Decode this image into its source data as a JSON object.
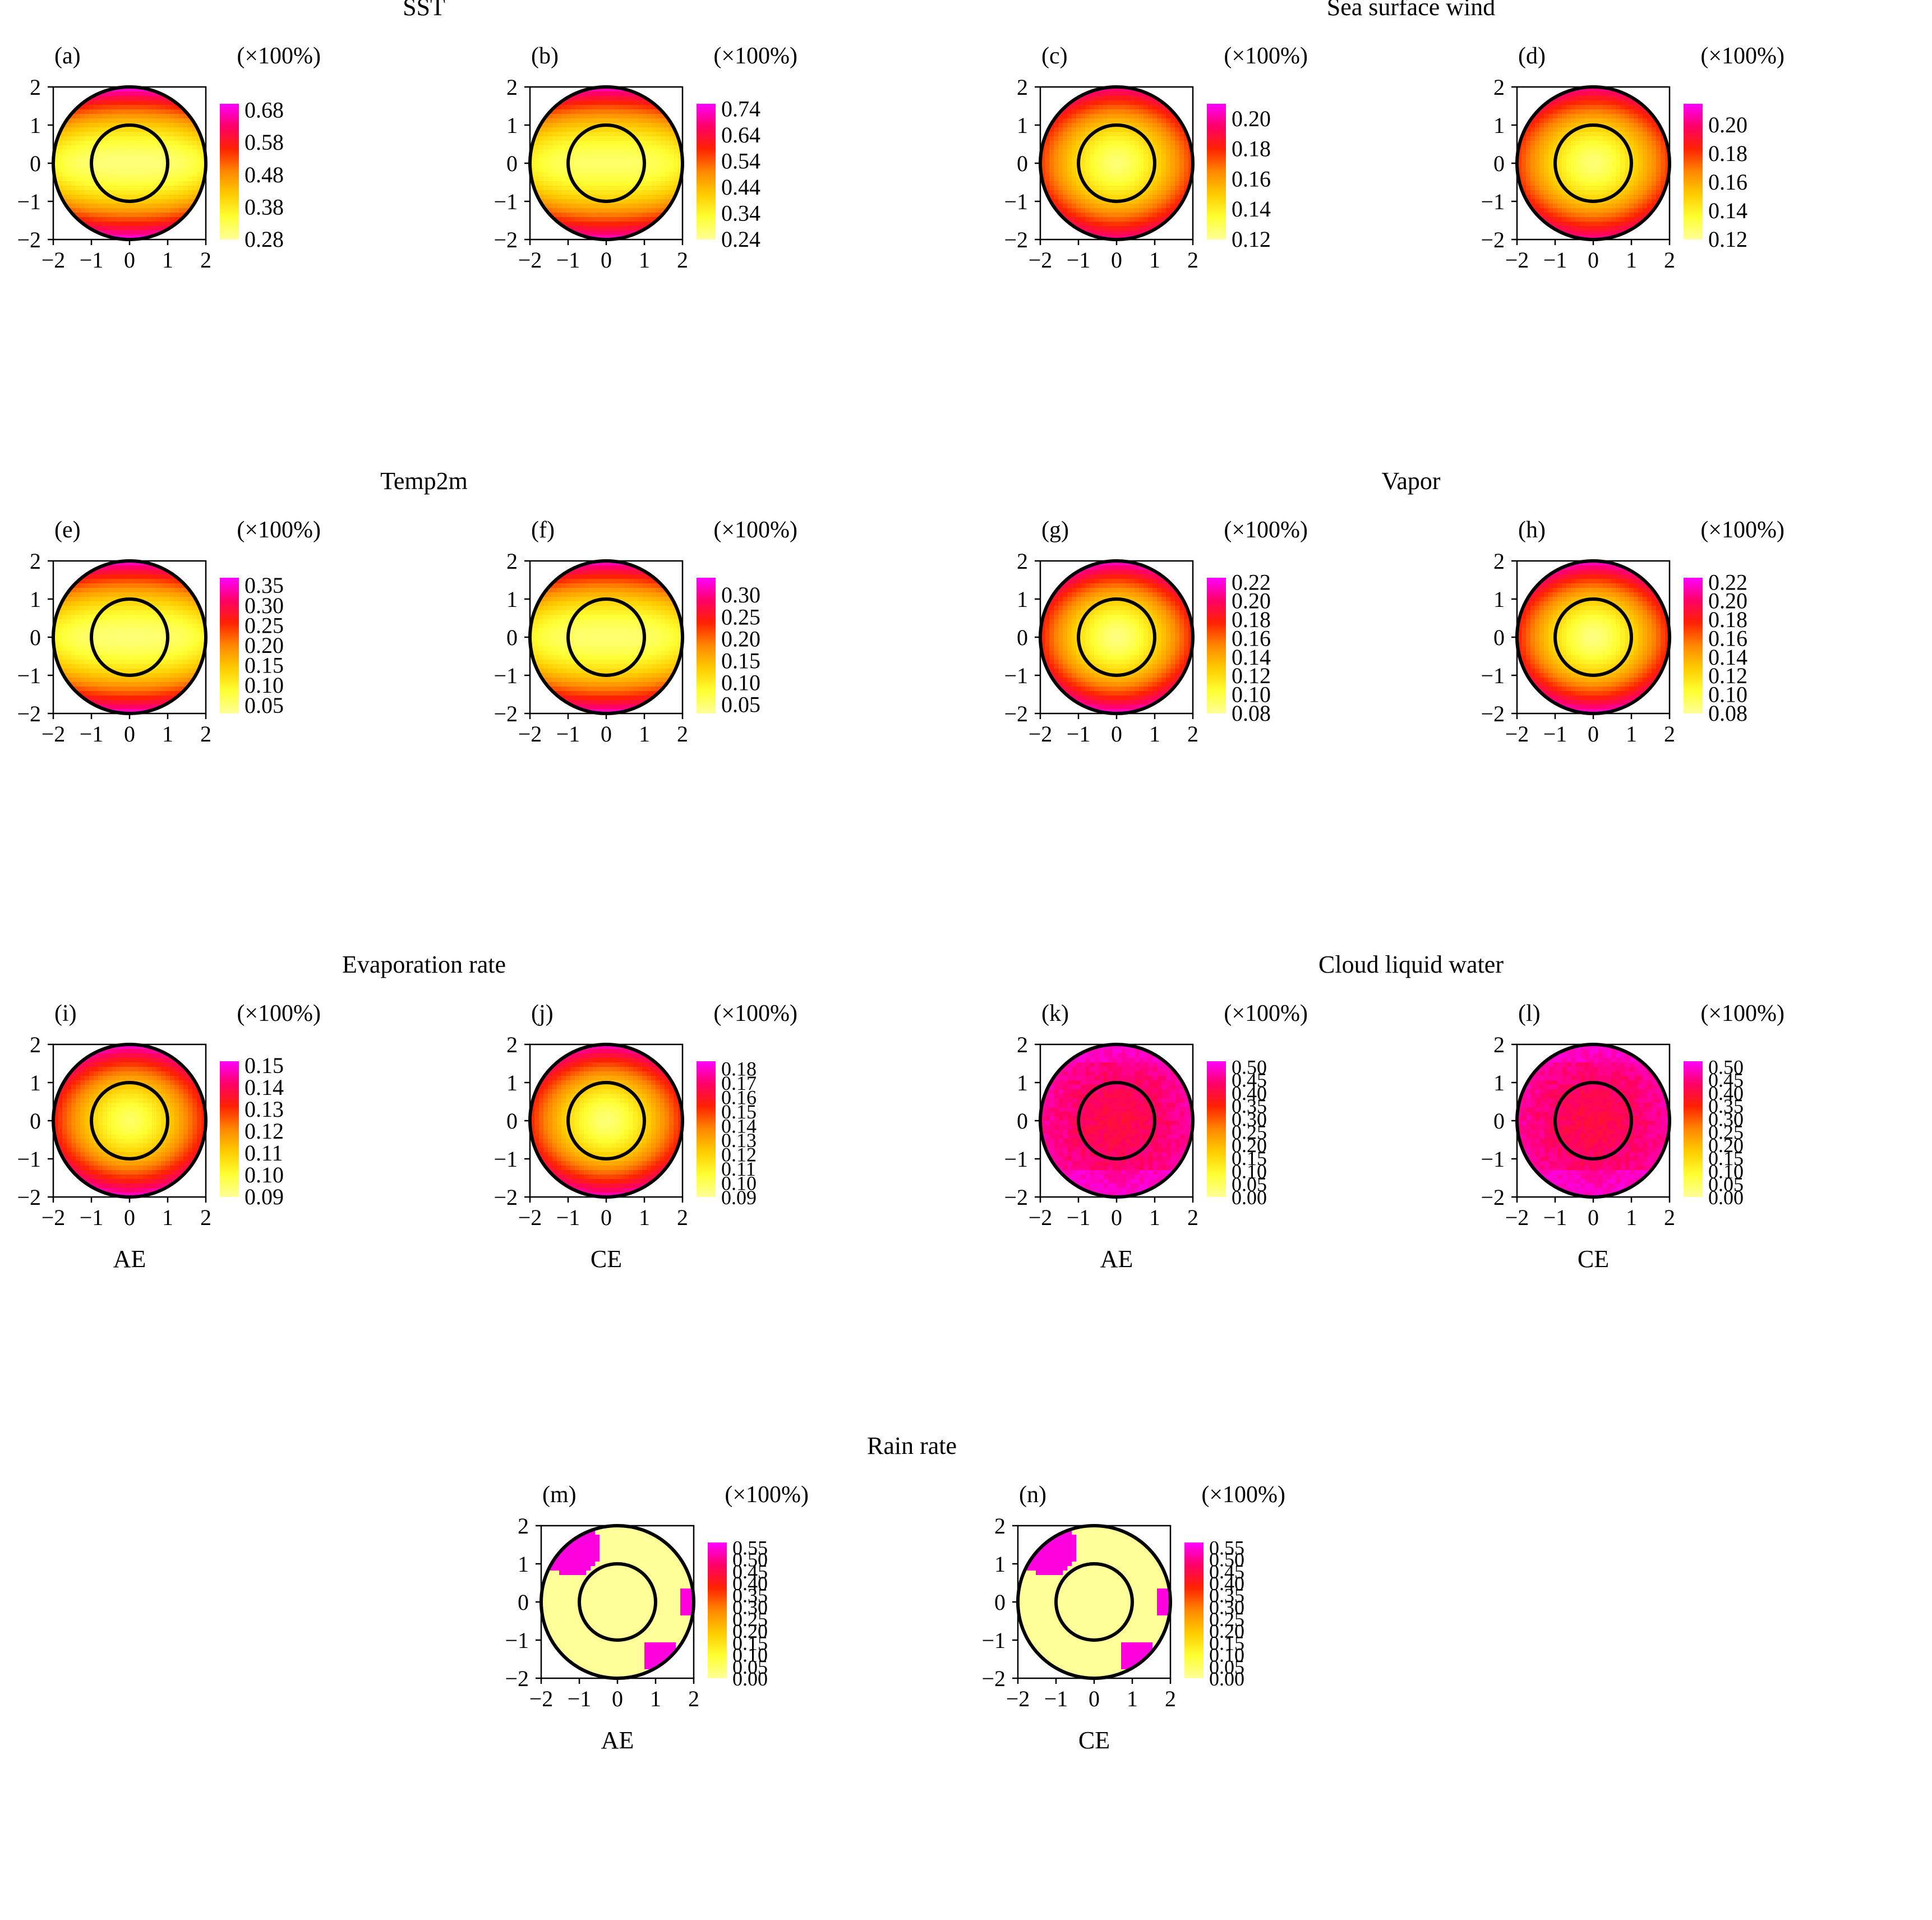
{
  "figure": {
    "unit_label": "(×100%)",
    "axis_ticks": [
      "−2",
      "−1",
      "0",
      "1",
      "2"
    ]
  },
  "colors": {
    "ramp": [
      "#ffff99",
      "#ffff33",
      "#ffcc00",
      "#ff8800",
      "#ff2200",
      "#ff0066",
      "#ff00ff"
    ],
    "outline": "#000000"
  },
  "chart_data": [
    {
      "id": "a",
      "type": "heatmap",
      "group_title": "SST",
      "xlabel": "",
      "label": "(a)",
      "colorbar_ticks": [
        "0.28",
        "0.38",
        "0.48",
        "0.58",
        "0.68"
      ],
      "vmin": 0.28,
      "vmax": 0.7,
      "pattern": "band",
      "params": {
        "ac": 0.3,
        "ae": 0.7,
        "ay": 0.0
      }
    },
    {
      "id": "b",
      "type": "heatmap",
      "group_title": "",
      "xlabel": "",
      "label": "(b)",
      "colorbar_ticks": [
        "0.24",
        "0.34",
        "0.44",
        "0.54",
        "0.64",
        "0.74"
      ],
      "vmin": 0.24,
      "vmax": 0.76,
      "pattern": "band",
      "params": {
        "ac": 0.28,
        "ae": 0.74,
        "ay": 0.0
      }
    },
    {
      "id": "c",
      "type": "heatmap",
      "group_title": "Sea surface wind",
      "xlabel": "",
      "label": "(c)",
      "colorbar_ticks": [
        "0.12",
        "0.14",
        "0.16",
        "0.18",
        "0.20"
      ],
      "vmin": 0.12,
      "vmax": 0.21,
      "pattern": "radial",
      "params": {
        "ac": 0.125,
        "ae": 0.2,
        "ay": 0.0
      }
    },
    {
      "id": "d",
      "type": "heatmap",
      "group_title": "",
      "xlabel": "",
      "label": "(d)",
      "colorbar_ticks": [
        "0.12",
        "0.14",
        "0.16",
        "0.18",
        "0.20"
      ],
      "vmin": 0.12,
      "vmax": 0.215,
      "pattern": "radial",
      "params": {
        "ac": 0.125,
        "ae": 0.205,
        "ay": 0.0
      }
    },
    {
      "id": "e",
      "type": "heatmap",
      "group_title": "Temp2m",
      "xlabel": "",
      "label": "(e)",
      "colorbar_ticks": [
        "0.05",
        "0.10",
        "0.15",
        "0.20",
        "0.25",
        "0.30",
        "0.35"
      ],
      "vmin": 0.03,
      "vmax": 0.37,
      "pattern": "band",
      "params": {
        "ac": 0.05,
        "ae": 0.36,
        "ay": 0.0
      }
    },
    {
      "id": "f",
      "type": "heatmap",
      "group_title": "",
      "xlabel": "",
      "label": "(f)",
      "colorbar_ticks": [
        "0.05",
        "0.10",
        "0.15",
        "0.20",
        "0.25",
        "0.30"
      ],
      "vmin": 0.03,
      "vmax": 0.34,
      "pattern": "band",
      "params": {
        "ac": 0.05,
        "ae": 0.33,
        "ay": 0.0
      }
    },
    {
      "id": "g",
      "type": "heatmap",
      "group_title": "Vapor",
      "xlabel": "",
      "label": "(g)",
      "colorbar_ticks": [
        "0.08",
        "0.10",
        "0.12",
        "0.14",
        "0.16",
        "0.18",
        "0.20",
        "0.22"
      ],
      "vmin": 0.08,
      "vmax": 0.225,
      "pattern": "radial",
      "params": {
        "ac": 0.085,
        "ae": 0.22,
        "ay": 0.0
      }
    },
    {
      "id": "h",
      "type": "heatmap",
      "group_title": "",
      "xlabel": "",
      "label": "(h)",
      "colorbar_ticks": [
        "0.08",
        "0.10",
        "0.12",
        "0.14",
        "0.16",
        "0.18",
        "0.20",
        "0.22"
      ],
      "vmin": 0.08,
      "vmax": 0.225,
      "pattern": "radial",
      "params": {
        "ac": 0.085,
        "ae": 0.22,
        "ay": 0.0
      }
    },
    {
      "id": "i",
      "type": "heatmap",
      "group_title": "Evaporation rate",
      "xlabel": "AE",
      "label": "(i)",
      "colorbar_ticks": [
        "0.09",
        "0.10",
        "0.11",
        "0.12",
        "0.13",
        "0.14",
        "0.15"
      ],
      "vmin": 0.09,
      "vmax": 0.152,
      "pattern": "radial",
      "params": {
        "ac": 0.095,
        "ae": 0.15,
        "ay": 0.0
      }
    },
    {
      "id": "j",
      "type": "heatmap",
      "group_title": "",
      "xlabel": "CE",
      "label": "(j)",
      "colorbar_ticks": [
        "0.09",
        "0.10",
        "0.11",
        "0.12",
        "0.13",
        "0.14",
        "0.15",
        "0.16",
        "0.17",
        "0.18"
      ],
      "vmin": 0.09,
      "vmax": 0.185,
      "pattern": "radial",
      "params": {
        "ac": 0.095,
        "ae": 0.18,
        "ay": 0.0
      }
    },
    {
      "id": "k",
      "type": "heatmap",
      "group_title": "Cloud liquid water",
      "xlabel": "AE",
      "label": "(k)",
      "colorbar_ticks": [
        "0.00",
        "0.05",
        "0.10",
        "0.15",
        "0.20",
        "0.25",
        "0.30",
        "0.35",
        "0.40",
        "0.45",
        "0.50"
      ],
      "vmin": 0.0,
      "vmax": 0.52,
      "pattern": "patchy",
      "params": {
        "ac": 0.38,
        "ae": 0.5,
        "ay": 0.0
      }
    },
    {
      "id": "l",
      "type": "heatmap",
      "group_title": "",
      "xlabel": "CE",
      "label": "(l)",
      "colorbar_ticks": [
        "0.00",
        "0.05",
        "0.10",
        "0.15",
        "0.20",
        "0.25",
        "0.30",
        "0.35",
        "0.40",
        "0.45",
        "0.50"
      ],
      "vmin": 0.0,
      "vmax": 0.52,
      "pattern": "patchy",
      "params": {
        "ac": 0.38,
        "ae": 0.5,
        "ay": 0.0
      }
    },
    {
      "id": "m",
      "type": "heatmap",
      "group_title": "Rain rate",
      "xlabel": "AE",
      "label": "(m)",
      "colorbar_ticks": [
        "0.00",
        "0.05",
        "0.10",
        "0.15",
        "0.20",
        "0.25",
        "0.30",
        "0.35",
        "0.40",
        "0.45",
        "0.50",
        "0.55"
      ],
      "vmin": 0.0,
      "vmax": 0.57,
      "pattern": "rain",
      "params": {
        "ac": 0.0,
        "ae": 0.55,
        "ay": 0.0
      }
    },
    {
      "id": "n",
      "type": "heatmap",
      "group_title": "",
      "xlabel": "CE",
      "label": "(n)",
      "colorbar_ticks": [
        "0.00",
        "0.05",
        "0.10",
        "0.15",
        "0.20",
        "0.25",
        "0.30",
        "0.35",
        "0.40",
        "0.45",
        "0.50",
        "0.55"
      ],
      "vmin": 0.0,
      "vmax": 0.57,
      "pattern": "rain",
      "params": {
        "ac": 0.0,
        "ae": 0.55,
        "ay": 0.0
      }
    }
  ]
}
